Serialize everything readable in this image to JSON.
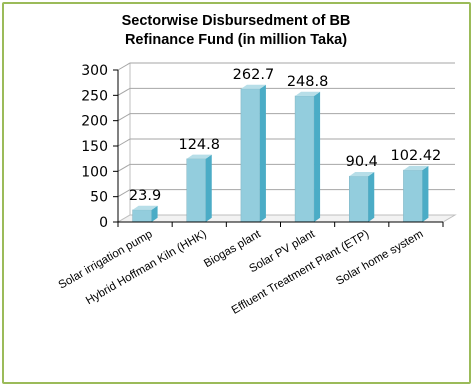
{
  "chart_data": {
    "type": "bar",
    "title_lines": [
      "Sectorwise Disbursedment of BB",
      "Refinance Fund  (in million Taka)"
    ],
    "categories": [
      "Solar irrigation pump",
      "Hybrid Hoffman Kiln (HHK)",
      "Biogas plant",
      "Solar PV  plant",
      "Effluent Treatment Plant (ETP)",
      "Solar home system"
    ],
    "values": [
      23.9,
      124.8,
      262.7,
      248.8,
      90.4,
      102.42
    ],
    "value_labels": [
      "23.9",
      "124.8",
      "262.7",
      "248.8",
      "90.4",
      "102.42"
    ],
    "ylim": [
      0,
      300
    ],
    "y_ticks": [
      "0",
      "50",
      "100",
      "150",
      "200",
      "250",
      "300"
    ],
    "gridlines": true,
    "style": "3d-column",
    "colors": {
      "bar_front": "#93cddd",
      "bar_side": "#4bacc6",
      "bar_top": "#b7dee8",
      "border": "#9bbb59"
    }
  }
}
